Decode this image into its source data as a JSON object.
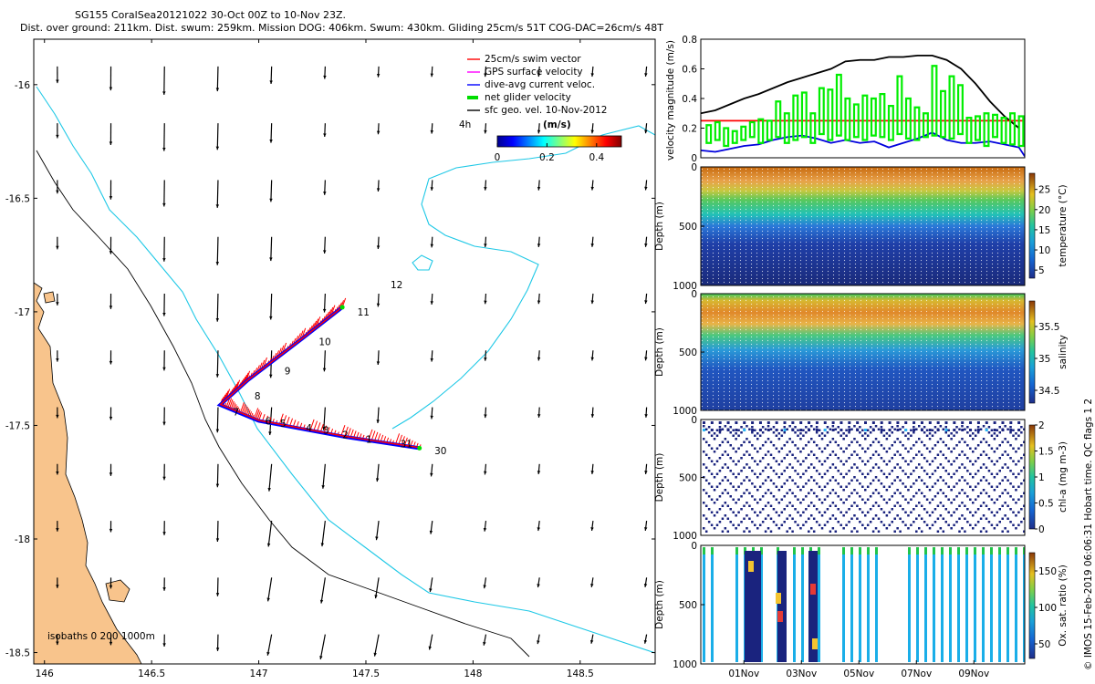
{
  "header": {
    "title_line1": "SG155 CoralSea20121022 30-Oct 00Z to 10-Nov 23Z.",
    "title_line2": "Dist. over ground: 211km. Dist. swum: 259km. Mission DOG: 406km. Swum: 430km. Gliding 25cm/s 51T COG-DAC=26cm/s 48T"
  },
  "colors": {
    "land": "#f8c48c",
    "coast_edge": "#000000",
    "isobath_200": "#1ec8e6",
    "isobath_1000": "#000000",
    "swim": "#ff0000",
    "gps": "#ff00ff",
    "dac": "#0000ff",
    "net": "#00dd00",
    "geo": "#000000",
    "mag_black": "#000000",
    "mag_red": "#ff0000",
    "mag_green": "#00ee00",
    "mag_blue": "#0000dd"
  },
  "chart_data": [
    {
      "type": "map",
      "name": "track-map",
      "xlim": [
        145.95,
        148.85
      ],
      "ylim": [
        -18.55,
        -15.8
      ],
      "xticks": [
        146,
        146.5,
        147,
        147.5,
        148,
        148.5
      ],
      "xtick_labels": [
        "146",
        "146.5",
        "147",
        "147.5",
        "148",
        "148.5"
      ],
      "yticks": [
        -16,
        -16.5,
        -17,
        -17.5,
        -18,
        -18.5
      ],
      "ytick_labels": [
        "-16",
        "-16.5",
        "-17",
        "-17.5",
        "-18",
        "-18.5"
      ],
      "legend": {
        "placement": "top-right",
        "items": [
          {
            "label": "25cm/s swim vector",
            "color": "#ff0000",
            "style": "line"
          },
          {
            "label": "GPS surface velocity",
            "color": "#ff00ff",
            "style": "line"
          },
          {
            "label": "dive-avg current veloc.",
            "color": "#0000ff",
            "style": "line"
          },
          {
            "label": "net glider velocity",
            "color": "#00dd00",
            "style": "thick"
          },
          {
            "label": "sfc geo. vel. 10-Nov-2012",
            "color": "#000000",
            "style": "line"
          }
        ]
      },
      "colorbar": {
        "label": "(m/s)",
        "ticks": [
          0,
          0.2,
          0.4
        ],
        "tick_labels": [
          "0",
          "0.2",
          "0.4"
        ],
        "range": [
          0,
          0.5
        ],
        "prefix": "4h"
      },
      "isobath_label": "isobaths 0  200  1000m",
      "annotations": [
        {
          "text": "12",
          "lon": 147.58,
          "lat": -16.94
        }
      ],
      "track": [
        {
          "lon": 147.75,
          "lat": -17.6
        },
        {
          "lon": 147.4,
          "lat": -17.55
        },
        {
          "lon": 147.0,
          "lat": -17.48
        },
        {
          "lon": 146.82,
          "lat": -17.41
        },
        {
          "lon": 146.95,
          "lat": -17.3
        },
        {
          "lon": 147.2,
          "lat": -17.12
        },
        {
          "lon": 147.39,
          "lat": -16.98
        }
      ],
      "track_labels": [
        {
          "text": "30",
          "lon": 147.82,
          "lat": -17.61
        },
        {
          "text": "31",
          "lon": 147.66,
          "lat": -17.58
        },
        {
          "text": "1",
          "lon": 147.5,
          "lat": -17.56
        },
        {
          "text": "2",
          "lon": 147.39,
          "lat": -17.54
        },
        {
          "text": "3",
          "lon": 147.3,
          "lat": -17.52
        },
        {
          "text": "4",
          "lon": 147.22,
          "lat": -17.51
        },
        {
          "text": "5",
          "lon": 147.1,
          "lat": -17.49
        },
        {
          "text": "6",
          "lon": 147.03,
          "lat": -17.48
        },
        {
          "text": "7",
          "lon": 146.88,
          "lat": -17.44
        },
        {
          "text": "8",
          "lon": 146.98,
          "lat": -17.37
        },
        {
          "text": "9",
          "lon": 147.12,
          "lat": -17.26
        },
        {
          "text": "10",
          "lon": 147.28,
          "lat": -17.13
        },
        {
          "text": "11",
          "lon": 147.46,
          "lat": -17.0
        }
      ],
      "vectors": {
        "grid_lon_step": 0.25,
        "grid_lat_step": 0.25,
        "lon_start": 146.06,
        "lat_start": -15.92
      }
    },
    {
      "type": "line",
      "name": "velocity-magnitude",
      "ylabel": "velocity magnitude (m/s)",
      "ylim": [
        0,
        0.8
      ],
      "yticks": [
        0,
        0.2,
        0.4,
        0.6,
        0.8
      ],
      "ytick_labels": [
        "0",
        "0.2",
        "0.4",
        "0.6",
        "0.8"
      ],
      "xlim": [
        0,
        11.2
      ],
      "series": [
        {
          "color": "#000000",
          "x": [
            0,
            0.5,
            1.0,
            1.5,
            2.0,
            2.5,
            3.0,
            3.5,
            4.0,
            4.5,
            5.0,
            5.5,
            6.0,
            6.5,
            7.0,
            7.5,
            8.0,
            8.5,
            9.0,
            9.5,
            10.0,
            10.5,
            11.0
          ],
          "y": [
            0.3,
            0.32,
            0.36,
            0.4,
            0.43,
            0.47,
            0.51,
            0.54,
            0.57,
            0.6,
            0.65,
            0.66,
            0.66,
            0.68,
            0.68,
            0.69,
            0.69,
            0.66,
            0.6,
            0.5,
            0.38,
            0.28,
            0.2
          ]
        },
        {
          "color": "#ff0000",
          "x": [
            0,
            11.2
          ],
          "y": [
            0.25,
            0.25
          ]
        },
        {
          "color": "#0000dd",
          "x": [
            0,
            0.5,
            1.0,
            1.5,
            2.0,
            2.5,
            3.0,
            3.5,
            4.0,
            4.5,
            5.0,
            5.5,
            6.0,
            6.5,
            7.0,
            7.5,
            8.0,
            8.5,
            9.0,
            9.5,
            10.0,
            10.5,
            11.0,
            11.2
          ],
          "y": [
            0.05,
            0.04,
            0.06,
            0.08,
            0.09,
            0.12,
            0.14,
            0.15,
            0.13,
            0.1,
            0.12,
            0.1,
            0.11,
            0.07,
            0.1,
            0.13,
            0.17,
            0.12,
            0.1,
            0.1,
            0.11,
            0.09,
            0.07,
            0.01
          ]
        },
        {
          "color": "#00ee00",
          "style": "bars",
          "x": [
            0.2,
            0.5,
            0.8,
            1.1,
            1.4,
            1.7,
            2.0,
            2.3,
            2.6,
            2.9,
            3.2,
            3.5,
            3.8,
            4.1,
            4.4,
            4.7,
            5.0,
            5.3,
            5.6,
            5.9,
            6.2,
            6.5,
            6.8,
            7.1,
            7.4,
            7.7,
            8.0,
            8.3,
            8.6,
            8.9,
            9.2,
            9.5,
            9.8,
            10.1,
            10.4,
            10.7,
            11.0
          ],
          "y": [
            0.22,
            0.24,
            0.2,
            0.18,
            0.21,
            0.24,
            0.26,
            0.25,
            0.38,
            0.3,
            0.42,
            0.44,
            0.3,
            0.47,
            0.46,
            0.56,
            0.4,
            0.36,
            0.42,
            0.4,
            0.43,
            0.35,
            0.55,
            0.4,
            0.34,
            0.3,
            0.62,
            0.45,
            0.55,
            0.49,
            0.27,
            0.28,
            0.3,
            0.29,
            0.27,
            0.3,
            0.28
          ],
          "y_low": [
            0.1,
            0.12,
            0.08,
            0.1,
            0.12,
            0.14,
            0.1,
            0.12,
            0.14,
            0.1,
            0.12,
            0.14,
            0.1,
            0.16,
            0.12,
            0.15,
            0.12,
            0.14,
            0.12,
            0.15,
            0.14,
            0.12,
            0.16,
            0.13,
            0.12,
            0.14,
            0.15,
            0.14,
            0.13,
            0.16,
            0.1,
            0.12,
            0.08,
            0.14,
            0.1,
            0.09,
            0.08
          ]
        }
      ]
    },
    {
      "type": "heatmap",
      "name": "temperature-section",
      "ylabel": "Depth (m)",
      "ylim": [
        0,
        1000
      ],
      "yticks": [
        0,
        500,
        1000
      ],
      "ytick_labels": [
        "0",
        "500",
        "1000"
      ],
      "colorbar": {
        "label": "temperature (°C)",
        "ticks": [
          5,
          10,
          15,
          20,
          25
        ],
        "tick_labels": [
          "5",
          "10",
          "15",
          "20",
          "25"
        ],
        "range": [
          3,
          29
        ]
      }
    },
    {
      "type": "heatmap",
      "name": "salinity-section",
      "ylabel": "Depth (m)",
      "ylim": [
        0,
        1000
      ],
      "yticks": [
        0,
        500,
        1000
      ],
      "ytick_labels": [
        "0",
        "500",
        "1000"
      ],
      "colorbar": {
        "label": "salinity",
        "ticks": [
          34.5,
          35,
          35.5
        ],
        "tick_labels": [
          "34.5",
          "35",
          "35.5"
        ],
        "range": [
          34.3,
          35.9
        ]
      }
    },
    {
      "type": "scatter",
      "name": "chla-section",
      "ylabel": "Depth (m)",
      "ylim": [
        0,
        1000
      ],
      "yticks": [
        0,
        500,
        1000
      ],
      "ytick_labels": [
        "0",
        "500",
        "1000"
      ],
      "colorbar": {
        "label": "chl-a (mg m-3)",
        "ticks": [
          0,
          0.5,
          1,
          1.5,
          2
        ],
        "tick_labels": [
          "0",
          "0.5",
          "1",
          "1.5",
          "2"
        ],
        "range": [
          0,
          2
        ]
      }
    },
    {
      "type": "scatter",
      "name": "oxygen-section",
      "ylabel": "Depth (m)",
      "ylim": [
        0,
        1000
      ],
      "yticks": [
        0,
        500,
        1000
      ],
      "ytick_labels": [
        "0",
        "500",
        "1000"
      ],
      "xticks": [
        1,
        3,
        5,
        7,
        9
      ],
      "xtick_labels": [
        "01Nov",
        "03Nov",
        "05Nov",
        "07Nov",
        "09Nov"
      ],
      "colorbar": {
        "label": "Ox. sat. ratio (%)",
        "ticks": [
          50,
          100,
          150
        ],
        "tick_labels": [
          "50",
          "100",
          "150"
        ],
        "range": [
          30,
          175
        ]
      }
    }
  ],
  "side_note": "© IMOS 15-Feb-2019 06:06:31 Hobart time. QC flags 1  2"
}
